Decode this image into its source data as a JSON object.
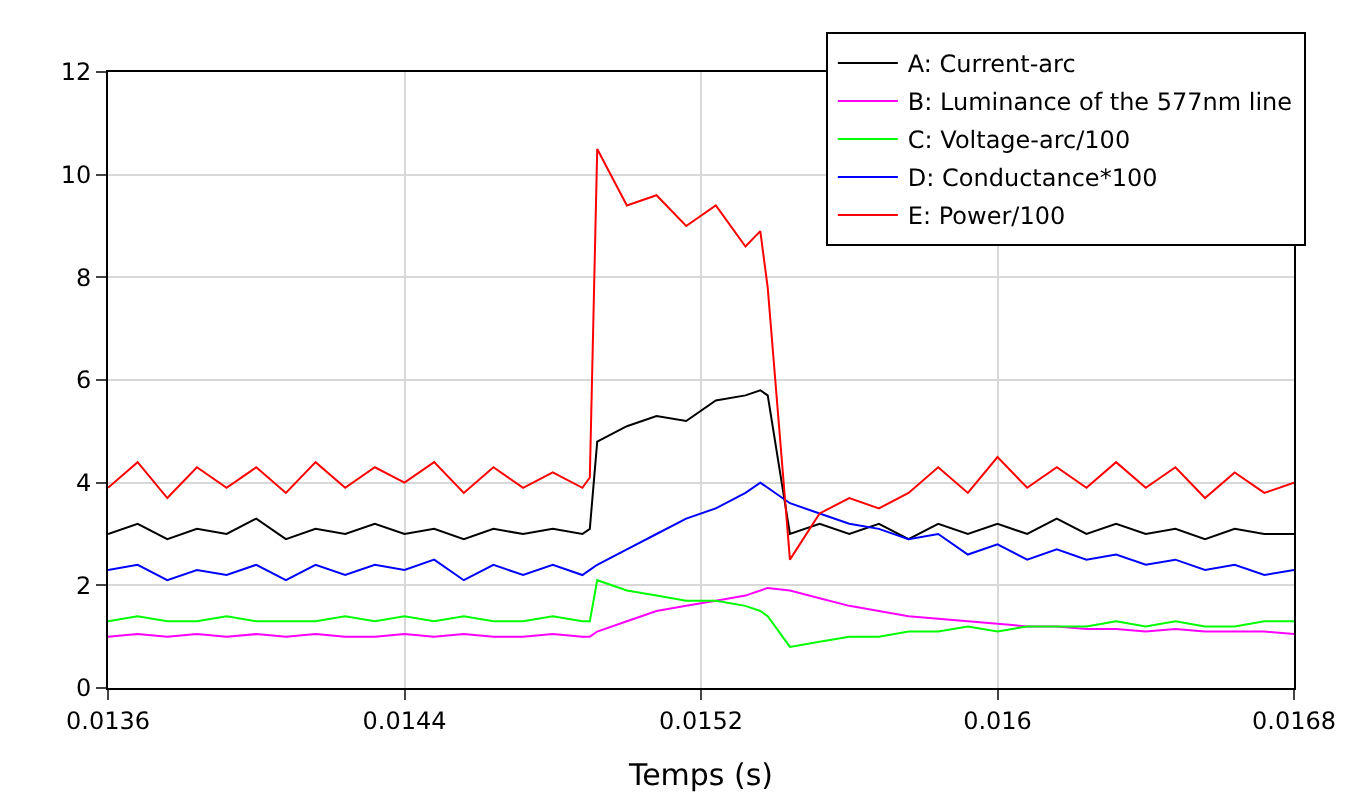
{
  "chart_data": {
    "type": "line",
    "xlabel": "Temps (s)",
    "x": [
      0.0136,
      0.01368,
      0.01376,
      0.01384,
      0.01392,
      0.014,
      0.01408,
      0.01416,
      0.01424,
      0.01432,
      0.0144,
      0.01448,
      0.01456,
      0.01464,
      0.01472,
      0.0148,
      0.01488,
      0.0149,
      0.01492,
      0.015,
      0.01508,
      0.01516,
      0.01524,
      0.01532,
      0.01536,
      0.01538,
      0.01544,
      0.01552,
      0.0156,
      0.01568,
      0.01576,
      0.01584,
      0.01592,
      0.016,
      0.01608,
      0.01616,
      0.01624,
      0.01632,
      0.0164,
      0.01648,
      0.01656,
      0.01664,
      0.01672,
      0.0168
    ],
    "series": [
      {
        "name": "A: Current-arc",
        "color": "#000000",
        "values": [
          3.0,
          3.2,
          2.9,
          3.1,
          3.0,
          3.3,
          2.9,
          3.1,
          3.0,
          3.2,
          3.0,
          3.1,
          2.9,
          3.1,
          3.0,
          3.1,
          3.0,
          3.1,
          4.8,
          5.1,
          5.3,
          5.2,
          5.6,
          5.7,
          5.8,
          5.7,
          3.0,
          3.2,
          3.0,
          3.2,
          2.9,
          3.2,
          3.0,
          3.2,
          3.0,
          3.3,
          3.0,
          3.2,
          3.0,
          3.1,
          2.9,
          3.1,
          3.0,
          3.0
        ]
      },
      {
        "name": "B: Luminance of the 577nm line",
        "color": "#ff00ff",
        "values": [
          1.0,
          1.05,
          1.0,
          1.05,
          1.0,
          1.05,
          1.0,
          1.05,
          1.0,
          1.0,
          1.05,
          1.0,
          1.05,
          1.0,
          1.0,
          1.05,
          1.0,
          1.0,
          1.1,
          1.3,
          1.5,
          1.6,
          1.7,
          1.8,
          1.9,
          1.95,
          1.9,
          1.75,
          1.6,
          1.5,
          1.4,
          1.35,
          1.3,
          1.25,
          1.2,
          1.2,
          1.15,
          1.15,
          1.1,
          1.15,
          1.1,
          1.1,
          1.1,
          1.05
        ]
      },
      {
        "name": "C: Voltage-arc/100",
        "color": "#00ff00",
        "values": [
          1.3,
          1.4,
          1.3,
          1.3,
          1.4,
          1.3,
          1.3,
          1.3,
          1.4,
          1.3,
          1.4,
          1.3,
          1.4,
          1.3,
          1.3,
          1.4,
          1.3,
          1.3,
          2.1,
          1.9,
          1.8,
          1.7,
          1.7,
          1.6,
          1.5,
          1.4,
          0.8,
          0.9,
          1.0,
          1.0,
          1.1,
          1.1,
          1.2,
          1.1,
          1.2,
          1.2,
          1.2,
          1.3,
          1.2,
          1.3,
          1.2,
          1.2,
          1.3,
          1.3
        ]
      },
      {
        "name": "D: Conductance*100",
        "color": "#0000ff",
        "values": [
          2.3,
          2.4,
          2.1,
          2.3,
          2.2,
          2.4,
          2.1,
          2.4,
          2.2,
          2.4,
          2.3,
          2.5,
          2.1,
          2.4,
          2.2,
          2.4,
          2.2,
          2.3,
          2.4,
          2.7,
          3.0,
          3.3,
          3.5,
          3.8,
          4.0,
          3.9,
          3.6,
          3.4,
          3.2,
          3.1,
          2.9,
          3.0,
          2.6,
          2.8,
          2.5,
          2.7,
          2.5,
          2.6,
          2.4,
          2.5,
          2.3,
          2.4,
          2.2,
          2.3
        ]
      },
      {
        "name": "E: Power/100",
        "color": "#ff0000",
        "values": [
          3.9,
          4.4,
          3.7,
          4.3,
          3.9,
          4.3,
          3.8,
          4.4,
          3.9,
          4.3,
          4.0,
          4.4,
          3.8,
          4.3,
          3.9,
          4.2,
          3.9,
          4.1,
          10.5,
          9.4,
          9.6,
          9.0,
          9.4,
          8.6,
          8.9,
          7.8,
          2.5,
          3.4,
          3.7,
          3.5,
          3.8,
          4.3,
          3.8,
          4.5,
          3.9,
          4.3,
          3.9,
          4.4,
          3.9,
          4.3,
          3.7,
          4.2,
          3.8,
          4.0
        ]
      }
    ],
    "xlim": [
      0.0136,
      0.0168
    ],
    "xticks": [
      0.0136,
      0.0144,
      0.0152,
      0.016,
      0.0168
    ],
    "ylim": [
      0,
      12
    ],
    "yticks": [
      0,
      2,
      4,
      6,
      8,
      10,
      12
    ],
    "grid": true,
    "legend": "top right",
    "marker": "none",
    "line_style": "solid"
  }
}
